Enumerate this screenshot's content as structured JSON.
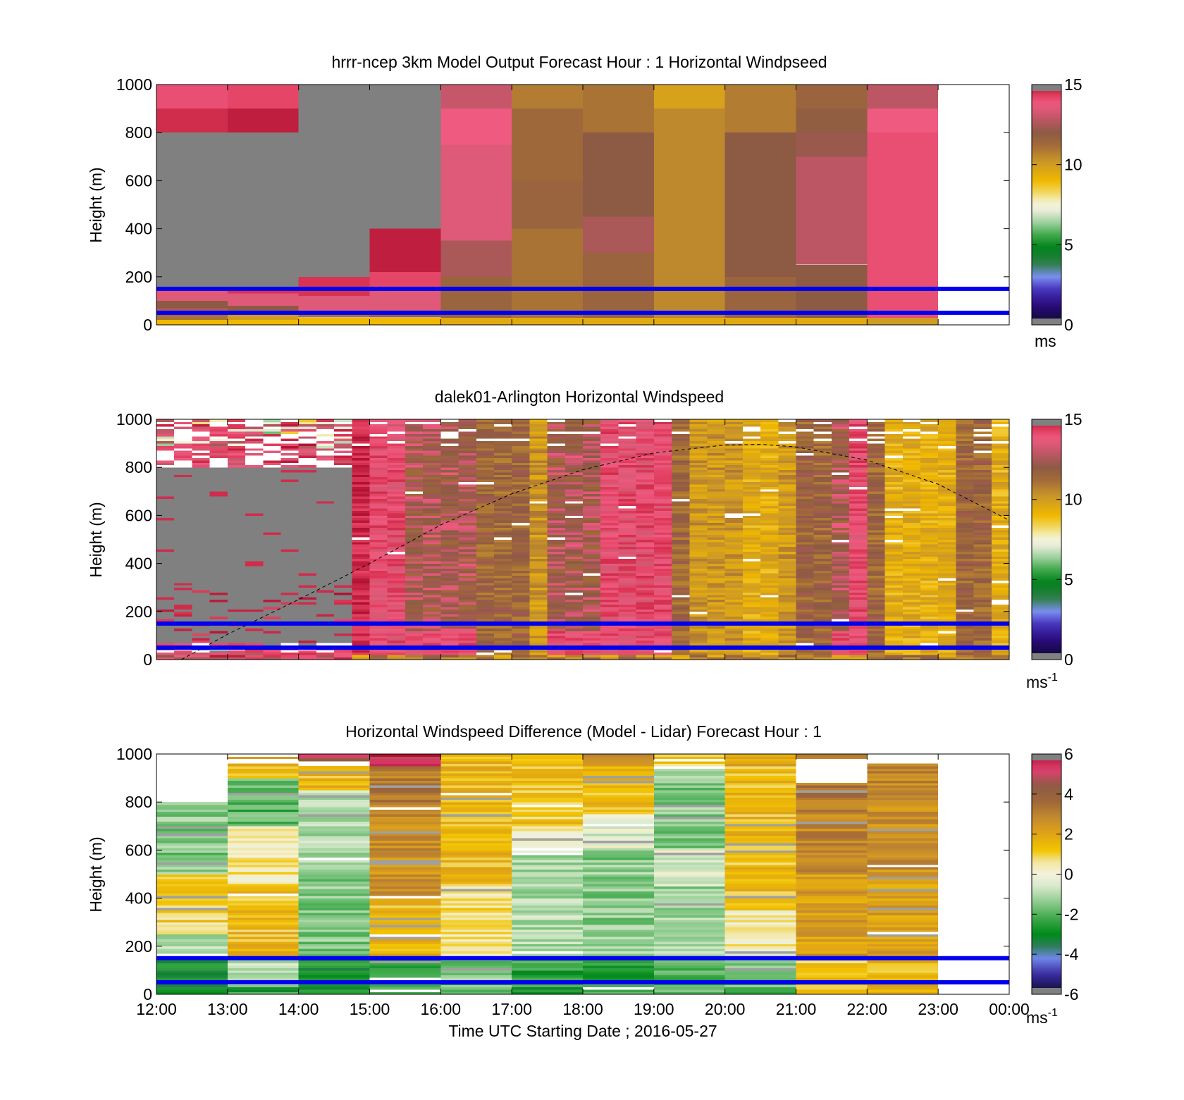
{
  "time_axis": {
    "label": "Time UTC  Starting Date ; 2016-05-27",
    "ticks": [
      "12:00",
      "13:00",
      "14:00",
      "15:00",
      "16:00",
      "17:00",
      "18:00",
      "19:00",
      "20:00",
      "21:00",
      "22:00",
      "23:00",
      "00:00"
    ]
  },
  "chart_data": [
    {
      "type": "heatmap",
      "title": "hrrr-ncep 3km Model Output   Forecast Hour : 1 Horizontal Windpseed",
      "ylabel": "Height (m)",
      "ylim": [
        0,
        1000
      ],
      "yticks": [
        0,
        200,
        400,
        600,
        800,
        1000
      ],
      "colorbar": {
        "ticks": [
          0,
          5,
          10,
          15
        ],
        "range": [
          0,
          15
        ],
        "unit": "ms",
        "colormap": "windspeed"
      },
      "hlines_m": [
        50,
        150
      ],
      "hlines_color": "#0000ee",
      "missing_color": "#808080",
      "columns": [
        {
          "t0": 12,
          "t1": 13,
          "layers": [
            [
              0,
              20,
              9
            ],
            [
              20,
              40,
              11
            ],
            [
              40,
              70,
              12.5
            ],
            [
              70,
              100,
              12
            ],
            [
              100,
              150,
              13.5
            ],
            [
              150,
              800,
              null
            ],
            [
              800,
              900,
              14.6
            ],
            [
              900,
              1000,
              14
            ]
          ]
        },
        {
          "t0": 13,
          "t1": 14,
          "layers": [
            [
              0,
              20,
              9
            ],
            [
              20,
              50,
              10
            ],
            [
              50,
              80,
              12
            ],
            [
              80,
              130,
              13.5
            ],
            [
              130,
              150,
              14.5
            ],
            [
              150,
              800,
              null
            ],
            [
              800,
              900,
              14.8
            ],
            [
              900,
              1000,
              14.2
            ]
          ]
        },
        {
          "t0": 14,
          "t1": 15,
          "layers": [
            [
              0,
              30,
              9
            ],
            [
              30,
              60,
              11
            ],
            [
              60,
              120,
              13.5
            ],
            [
              120,
              200,
              14.5
            ],
            [
              200,
              1000,
              null
            ]
          ]
        },
        {
          "t0": 15,
          "t1": 16,
          "layers": [
            [
              0,
              30,
              9
            ],
            [
              30,
              60,
              11.5
            ],
            [
              60,
              150,
              13.5
            ],
            [
              150,
              220,
              14.2
            ],
            [
              220,
              400,
              14.8
            ],
            [
              400,
              1000,
              null
            ]
          ]
        },
        {
          "t0": 16,
          "t1": 17,
          "layers": [
            [
              0,
              30,
              9.5
            ],
            [
              30,
              200,
              11.5
            ],
            [
              200,
              350,
              12.5
            ],
            [
              350,
              750,
              13.5
            ],
            [
              750,
              900,
              13.8
            ],
            [
              900,
              1000,
              13
            ]
          ]
        },
        {
          "t0": 17,
          "t1": 18,
          "layers": [
            [
              0,
              30,
              9.5
            ],
            [
              30,
              400,
              11
            ],
            [
              400,
              600,
              11.5
            ],
            [
              600,
              900,
              11.3
            ],
            [
              900,
              1000,
              10.8
            ]
          ]
        },
        {
          "t0": 18,
          "t1": 19,
          "layers": [
            [
              0,
              30,
              9.5
            ],
            [
              30,
              300,
              11.5
            ],
            [
              300,
              450,
              12.5
            ],
            [
              450,
              800,
              12
            ],
            [
              800,
              1000,
              11
            ]
          ]
        },
        {
          "t0": 19,
          "t1": 20,
          "layers": [
            [
              0,
              30,
              9.5
            ],
            [
              30,
              900,
              10.5
            ],
            [
              900,
              1000,
              9.8
            ]
          ]
        },
        {
          "t0": 20,
          "t1": 21,
          "layers": [
            [
              0,
              30,
              9.5
            ],
            [
              30,
              200,
              11.5
            ],
            [
              200,
              800,
              12
            ],
            [
              800,
              1000,
              10.8
            ]
          ]
        },
        {
          "t0": 21,
          "t1": 22,
          "layers": [
            [
              0,
              30,
              9.5
            ],
            [
              30,
              250,
              12
            ],
            [
              250,
              700,
              12.8
            ],
            [
              700,
              800,
              12.2
            ],
            [
              800,
              900,
              11.8
            ],
            [
              900,
              1000,
              11.5
            ]
          ]
        },
        {
          "t0": 22,
          "t1": 23,
          "layers": [
            [
              0,
              30,
              10
            ],
            [
              30,
              800,
              14
            ],
            [
              800,
              900,
              13.8
            ],
            [
              900,
              1000,
              12.8
            ]
          ]
        }
      ]
    },
    {
      "type": "heatmap",
      "title": "dalek01-Arlington  Horizontal Windspeed",
      "ylabel": "Height (m)",
      "ylim": [
        0,
        1000
      ],
      "yticks": [
        0,
        200,
        400,
        600,
        800,
        1000
      ],
      "colorbar": {
        "ticks": [
          0,
          5,
          10,
          15
        ],
        "range": [
          0,
          15
        ],
        "unit": "ms-1",
        "colormap": "windspeed"
      },
      "hlines_m": [
        50,
        150
      ],
      "hlines_color": "#0000ee",
      "missing_color": "#808080",
      "profile_step_hours": 0.25,
      "column_types": [
        "n",
        "n",
        "n",
        "n",
        "n",
        "n",
        "n",
        "n",
        "n",
        "n",
        "n",
        "h",
        "p",
        "p",
        "k",
        "k",
        "k",
        "k",
        "b",
        "b",
        "b",
        "g",
        "k",
        "k",
        "k",
        "p",
        "p",
        "p",
        "m",
        "b",
        "g",
        "g",
        "g",
        "y",
        "y",
        "g",
        "b",
        "b",
        "k",
        "m",
        "b",
        "y",
        "y",
        "y",
        "y",
        "b",
        "b",
        "y",
        "y"
      ],
      "dashed_curve": {
        "style": "dashed",
        "color": "#000000",
        "points": [
          [
            12.35,
            0
          ],
          [
            13.0,
            105
          ],
          [
            14.0,
            250
          ],
          [
            15.0,
            400
          ],
          [
            16.0,
            560
          ],
          [
            17.0,
            690
          ],
          [
            18.0,
            790
          ],
          [
            19.0,
            860
          ],
          [
            20.0,
            893
          ],
          [
            20.5,
            896
          ],
          [
            21.0,
            885
          ],
          [
            22.0,
            830
          ],
          [
            23.0,
            730
          ],
          [
            24.0,
            580
          ]
        ]
      }
    },
    {
      "type": "heatmap",
      "title": "Horizontal Windspeed Difference (Model - Lidar) Forecast Hour : 1",
      "ylabel": "Height (m)",
      "ylim": [
        0,
        1000
      ],
      "yticks": [
        0,
        200,
        400,
        600,
        800,
        1000
      ],
      "colorbar": {
        "ticks": [
          -6,
          -4,
          -2,
          0,
          2,
          4,
          6
        ],
        "range": [
          -6,
          6
        ],
        "unit": "ms-1",
        "colormap": "difference"
      },
      "hlines_m": [
        50,
        150
      ],
      "hlines_color": "#0000ee",
      "missing_color": "#a0a0a0",
      "columns": [
        {
          "t0": 12,
          "t1": 13,
          "layers": [
            [
              0,
              20,
              -3
            ],
            [
              20,
              150,
              -2.8
            ],
            [
              150,
              250,
              -1
            ],
            [
              250,
              500,
              1
            ],
            [
              500,
              800,
              -1.5
            ],
            [
              800,
              1000,
              null
            ]
          ]
        },
        {
          "t0": 13,
          "t1": 14,
          "layers": [
            [
              0,
              30,
              -2.5
            ],
            [
              30,
              150,
              -0.8
            ],
            [
              150,
              450,
              1.4
            ],
            [
              450,
              700,
              0.5
            ],
            [
              700,
              900,
              -2
            ],
            [
              900,
              960,
              1.6
            ],
            [
              960,
              980,
              null
            ],
            [
              980,
              1000,
              3
            ]
          ]
        },
        {
          "t0": 14,
          "t1": 15,
          "layers": [
            [
              0,
              150,
              -2.8
            ],
            [
              150,
              500,
              -1.5
            ],
            [
              500,
              850,
              -1
            ],
            [
              850,
              950,
              1.5
            ],
            [
              950,
              970,
              null
            ],
            [
              970,
              985,
              4.5
            ],
            [
              985,
              1000,
              5
            ]
          ]
        },
        {
          "t0": 15,
          "t1": 16,
          "layers": [
            [
              0,
              150,
              -2.3
            ],
            [
              150,
              400,
              1.5
            ],
            [
              400,
              750,
              2.6
            ],
            [
              750,
              950,
              3.2
            ],
            [
              950,
              1000,
              5.5
            ]
          ]
        },
        {
          "t0": 16,
          "t1": 17,
          "layers": [
            [
              0,
              50,
              -1.8
            ],
            [
              50,
              150,
              -1.5
            ],
            [
              150,
              350,
              0.6
            ],
            [
              350,
              450,
              0.8
            ],
            [
              450,
              950,
              1.5
            ],
            [
              950,
              1000,
              1.6
            ]
          ]
        },
        {
          "t0": 17,
          "t1": 18,
          "layers": [
            [
              0,
              150,
              -2.5
            ],
            [
              150,
              600,
              -1
            ],
            [
              600,
              700,
              0.3
            ],
            [
              700,
              1000,
              1.2
            ]
          ]
        },
        {
          "t0": 18,
          "t1": 19,
          "layers": [
            [
              0,
              150,
              -2.4
            ],
            [
              150,
              600,
              -1.4
            ],
            [
              600,
              750,
              -0.4
            ],
            [
              750,
              950,
              1.4
            ],
            [
              950,
              1000,
              3
            ]
          ]
        },
        {
          "t0": 19,
          "t1": 20,
          "layers": [
            [
              0,
              150,
              -2
            ],
            [
              150,
              450,
              -1.2
            ],
            [
              450,
              600,
              -0.4
            ],
            [
              600,
              950,
              -1.4
            ],
            [
              950,
              1000,
              1.2
            ]
          ]
        },
        {
          "t0": 20,
          "t1": 21,
          "layers": [
            [
              0,
              150,
              -1.8
            ],
            [
              150,
              350,
              0.3
            ],
            [
              350,
              950,
              1.4
            ],
            [
              950,
              1000,
              2
            ]
          ]
        },
        {
          "t0": 21,
          "t1": 22,
          "layers": [
            [
              0,
              150,
              1.3
            ],
            [
              150,
              500,
              2.2
            ],
            [
              500,
              800,
              2.8
            ],
            [
              800,
              880,
              3.2
            ],
            [
              880,
              980,
              null
            ],
            [
              980,
              1000,
              3.5
            ]
          ]
        },
        {
          "t0": 22,
          "t1": 23,
          "layers": [
            [
              0,
              150,
              1.5
            ],
            [
              150,
              500,
              2.2
            ],
            [
              500,
              850,
              2.6
            ],
            [
              850,
              960,
              2.8
            ],
            [
              960,
              980,
              null
            ]
          ]
        }
      ]
    }
  ]
}
